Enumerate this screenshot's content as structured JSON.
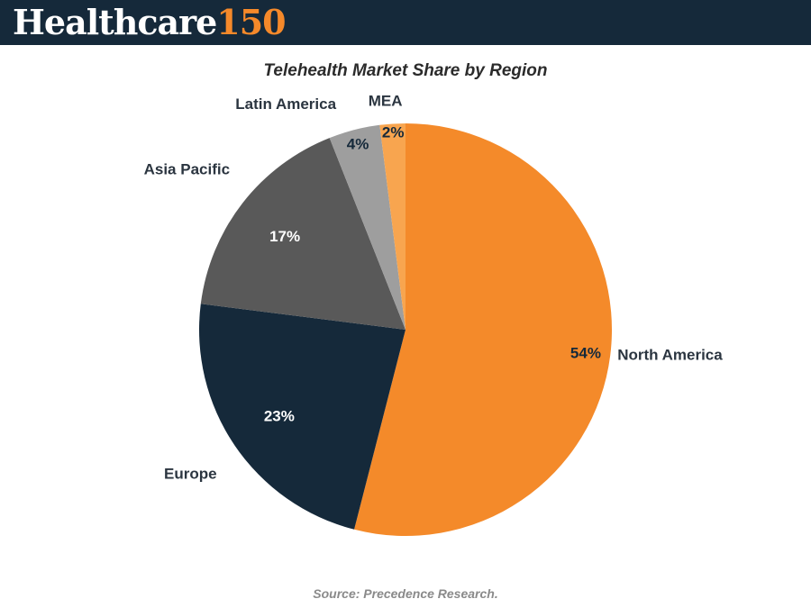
{
  "header": {
    "logo_word": "Healthcare",
    "logo_number": "150"
  },
  "colors": {
    "header_bg": "#15293a",
    "logo_accent": "#f5892a"
  },
  "chart_data": {
    "type": "pie",
    "title": "Telehealth Market Share by Region",
    "slices": [
      {
        "label": "North America",
        "value": 54,
        "display": "54%",
        "color": "#f48a2a",
        "pct_color": "#15293a"
      },
      {
        "label": "Europe",
        "value": 23,
        "display": "23%",
        "color": "#15293a",
        "pct_color": "#ffffff"
      },
      {
        "label": "Asia Pacific",
        "value": 17,
        "display": "17%",
        "color": "#595959",
        "pct_color": "#ffffff"
      },
      {
        "label": "Latin America",
        "value": 4,
        "display": "4%",
        "color": "#9e9e9e",
        "pct_color": "#15293a"
      },
      {
        "label": "MEA",
        "value": 2,
        "display": "2%",
        "color": "#f8a54f",
        "pct_color": "#15293a"
      }
    ],
    "start": "12 o'clock",
    "direction": "clockwise",
    "legend": "none (labels outside slices)"
  },
  "footer": {
    "source": "Source: Precedence Research."
  }
}
